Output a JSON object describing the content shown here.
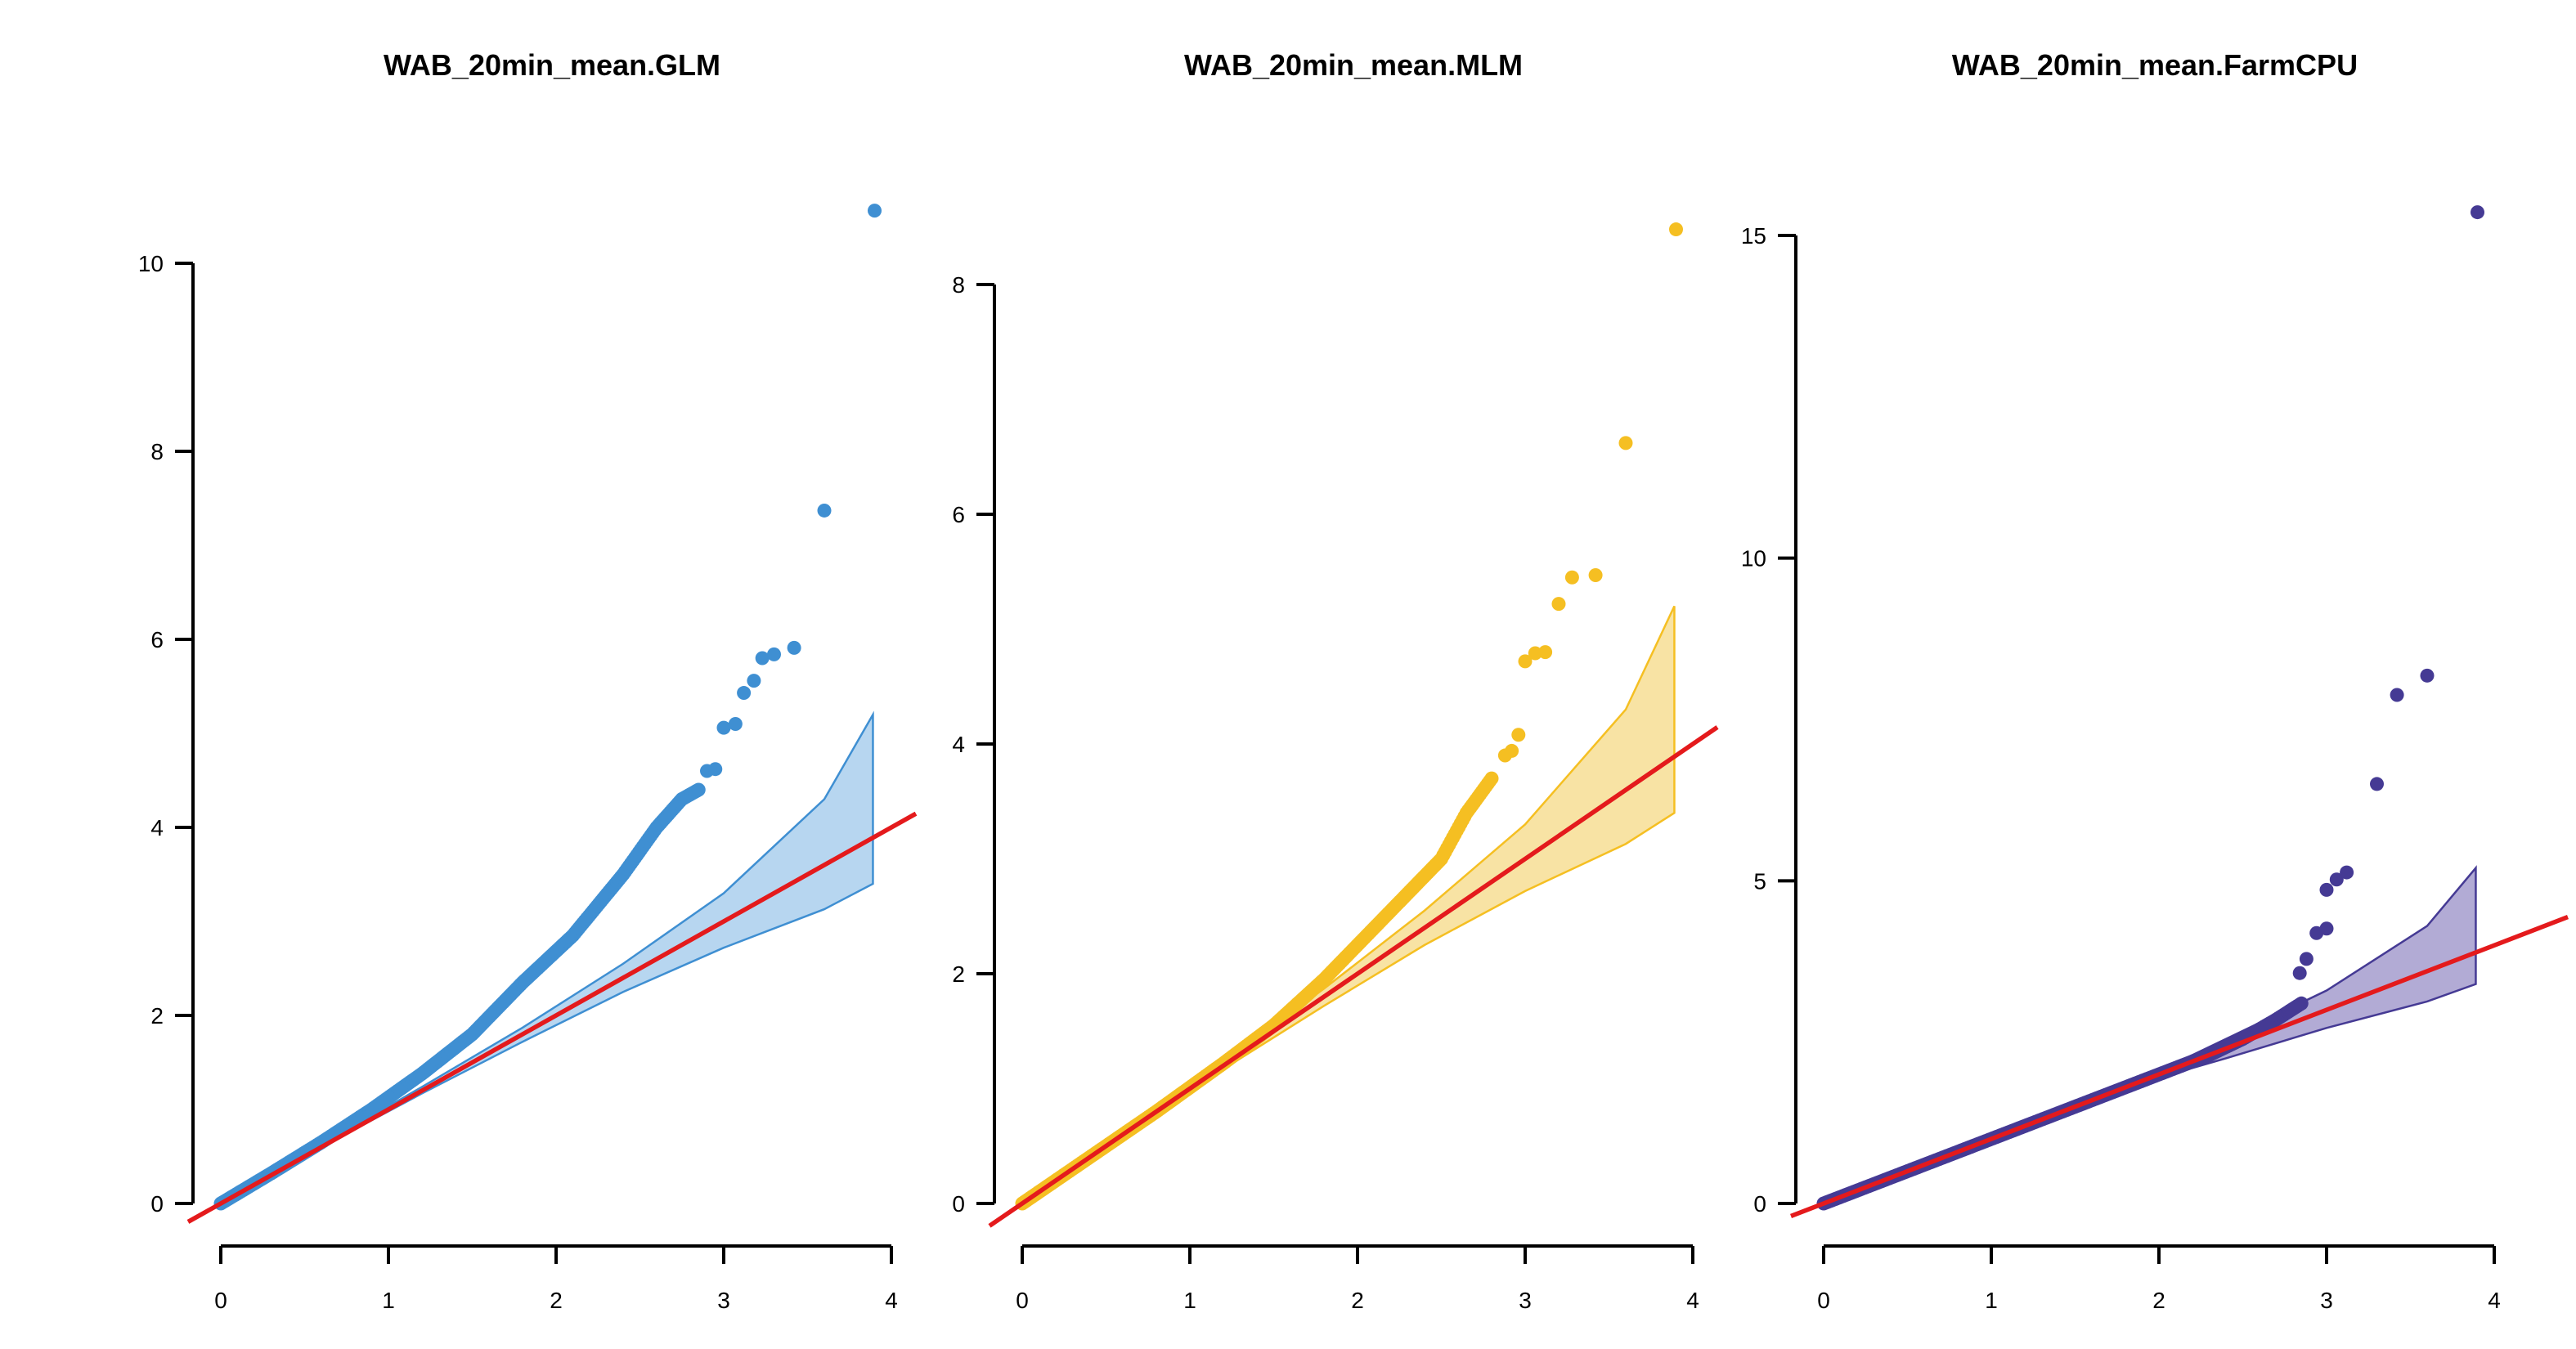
{
  "chart_data": [
    {
      "type": "scatter",
      "title": "WAB_20min_mean.GLM",
      "xlabel": "",
      "ylabel": "",
      "xlim": [
        0,
        4
      ],
      "ylim": [
        0,
        10
      ],
      "xticks": [
        "0",
        "1",
        "2",
        "3",
        "4"
      ],
      "yticks": [
        "0",
        "2",
        "4",
        "6",
        "8",
        "10"
      ],
      "color": "#3f8fd2",
      "band_fill": "#b7d6f0",
      "reference_line_color": "#e41a1c",
      "reference_line": "y = x",
      "confidence_band": {
        "x": [
          0.6,
          1.2,
          1.8,
          2.4,
          3.0,
          3.6,
          3.89
        ],
        "lower": [
          0.6,
          1.17,
          1.72,
          2.25,
          2.72,
          3.13,
          3.4
        ],
        "upper": [
          0.62,
          1.24,
          1.87,
          2.55,
          3.3,
          4.3,
          5.2
        ]
      },
      "points_curve": [
        [
          0.0,
          0.0
        ],
        [
          0.3,
          0.32
        ],
        [
          0.6,
          0.65
        ],
        [
          0.9,
          1.0
        ],
        [
          1.2,
          1.38
        ],
        [
          1.5,
          1.8
        ],
        [
          1.8,
          2.35
        ],
        [
          2.1,
          2.85
        ],
        [
          2.4,
          3.5
        ],
        [
          2.6,
          4.0
        ],
        [
          2.75,
          4.3
        ],
        [
          2.85,
          4.4
        ]
      ],
      "points": [
        [
          2.9,
          4.6
        ],
        [
          2.95,
          4.62
        ],
        [
          3.0,
          5.06
        ],
        [
          3.07,
          5.1
        ],
        [
          3.12,
          5.43
        ],
        [
          3.18,
          5.56
        ],
        [
          3.23,
          5.8
        ],
        [
          3.3,
          5.84
        ],
        [
          3.42,
          5.91
        ],
        [
          3.6,
          7.37
        ],
        [
          3.9,
          10.56
        ]
      ]
    },
    {
      "type": "scatter",
      "title": "WAB_20min_mean.MLM",
      "xlabel": "",
      "ylabel": "",
      "xlim": [
        0,
        4
      ],
      "ylim": [
        0,
        8
      ],
      "xticks": [
        "0",
        "1",
        "2",
        "3",
        "4"
      ],
      "yticks": [
        "0",
        "2",
        "4",
        "6",
        "8"
      ],
      "color": "#f5bf22",
      "band_fill": "#f8e3a4",
      "reference_line_color": "#e41a1c",
      "reference_line": "y = x",
      "confidence_band": {
        "x": [
          1.2,
          1.8,
          2.4,
          3.0,
          3.6,
          3.89
        ],
        "lower": [
          1.17,
          1.72,
          2.25,
          2.72,
          3.13,
          3.4
        ],
        "upper": [
          1.24,
          1.87,
          2.55,
          3.3,
          4.3,
          5.2
        ]
      },
      "points_curve": [
        [
          0.0,
          0.0
        ],
        [
          0.4,
          0.4
        ],
        [
          0.8,
          0.8
        ],
        [
          1.2,
          1.22
        ],
        [
          1.5,
          1.55
        ],
        [
          1.8,
          1.95
        ],
        [
          2.1,
          2.4
        ],
        [
          2.3,
          2.7
        ],
        [
          2.5,
          3.0
        ],
        [
          2.65,
          3.4
        ],
        [
          2.8,
          3.7
        ]
      ],
      "points": [
        [
          2.88,
          3.9
        ],
        [
          2.92,
          3.94
        ],
        [
          2.96,
          4.08
        ],
        [
          3.0,
          4.72
        ],
        [
          3.06,
          4.79
        ],
        [
          3.12,
          4.8
        ],
        [
          3.2,
          5.22
        ],
        [
          3.28,
          5.45
        ],
        [
          3.42,
          5.47
        ],
        [
          3.6,
          6.62
        ],
        [
          3.9,
          8.48
        ]
      ]
    },
    {
      "type": "scatter",
      "title": "WAB_20min_mean.FarmCPU",
      "xlabel": "",
      "ylabel": "",
      "xlim": [
        0,
        4
      ],
      "ylim": [
        0,
        15
      ],
      "xticks": [
        "0",
        "1",
        "2",
        "3",
        "4"
      ],
      "yticks": [
        "0",
        "5",
        "10",
        "15"
      ],
      "color": "#453a94",
      "band_fill": "#b2abd5",
      "reference_line_color": "#e41a1c",
      "reference_line": "y = x",
      "confidence_band": {
        "x": [
          2.0,
          2.4,
          3.0,
          3.6,
          3.89
        ],
        "lower": [
          1.95,
          2.25,
          2.72,
          3.13,
          3.4
        ],
        "upper": [
          2.05,
          2.55,
          3.3,
          4.3,
          5.2
        ]
      },
      "points_curve": [
        [
          0.0,
          0.0
        ],
        [
          0.5,
          0.5
        ],
        [
          1.0,
          1.0
        ],
        [
          1.5,
          1.5
        ],
        [
          2.0,
          2.0
        ],
        [
          2.3,
          2.3
        ],
        [
          2.5,
          2.55
        ],
        [
          2.7,
          2.85
        ],
        [
          2.85,
          3.1
        ]
      ],
      "points": [
        [
          2.84,
          3.57
        ],
        [
          2.88,
          3.79
        ],
        [
          2.94,
          4.19
        ],
        [
          3.0,
          4.26
        ],
        [
          3.0,
          4.86
        ],
        [
          3.06,
          5.02
        ],
        [
          3.12,
          5.13
        ],
        [
          3.3,
          6.5
        ],
        [
          3.42,
          7.88
        ],
        [
          3.6,
          8.18
        ],
        [
          3.9,
          15.36
        ]
      ]
    }
  ]
}
